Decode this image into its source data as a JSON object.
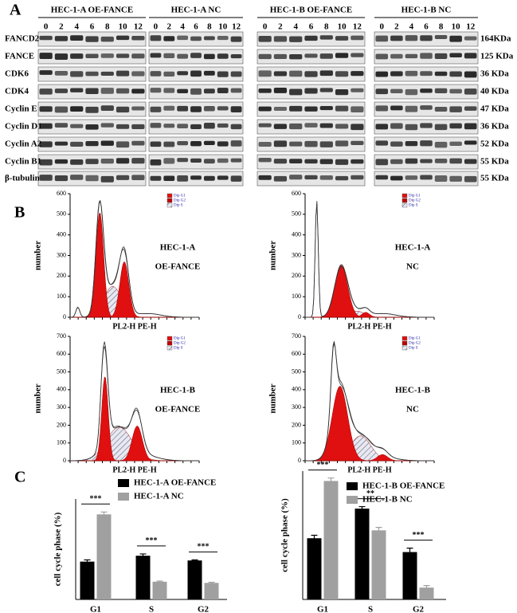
{
  "panel_labels": [
    "A",
    "B",
    "C"
  ],
  "blot": {
    "groups": [
      "HEC-1-A OE-FANCE",
      "HEC-1-A NC",
      "HEC-1-B OE-FANCE",
      "HEC-1-B NC"
    ],
    "timepoints": [
      0,
      2,
      4,
      6,
      8,
      10,
      12
    ],
    "rows": [
      {
        "protein": "FANCD2",
        "size": "164KDa"
      },
      {
        "protein": "FANCE",
        "size": "125 KDa"
      },
      {
        "protein": "CDK6",
        "size": "36 KDa"
      },
      {
        "protein": "CDK4",
        "size": "40 KDa"
      },
      {
        "protein": "Cyclin E",
        "size": "47 KDa"
      },
      {
        "protein": "Cyclin D1",
        "size": "36 KDa"
      },
      {
        "protein": "Cyclin A2",
        "size": "52 KDa"
      },
      {
        "protein": "Cyclin B1",
        "size": "55 KDa"
      },
      {
        "protein": "β-tubulin",
        "size": "55 KDa"
      }
    ]
  },
  "flow": {
    "ylabel": "number",
    "xlabel": "PL2-H PE-H",
    "legend": [
      "Dip G1",
      "Dip G2",
      "Dip S"
    ],
    "plots": [
      {
        "line1": "HEC-1-A",
        "line2": "OE-FANCE",
        "yticks": [
          0,
          100,
          200,
          300,
          400,
          500,
          600
        ]
      },
      {
        "line1": "HEC-1-A",
        "line2": "NC",
        "yticks": [
          0,
          100,
          200,
          300,
          400,
          500,
          600
        ]
      },
      {
        "line1": "HEC-1-B",
        "line2": "OE-FANCE",
        "yticks": [
          0,
          100,
          200,
          300,
          400,
          500,
          600,
          700
        ]
      },
      {
        "line1": "HEC-1-B",
        "line2": "NC",
        "yticks": [
          0,
          100,
          200,
          300,
          400,
          500,
          600,
          700
        ]
      }
    ]
  },
  "chart_data": [
    {
      "type": "bar",
      "ylabel": "cell cycle phase (%)",
      "categories": [
        "G1",
        "S",
        "G2"
      ],
      "ylim": [
        0,
        85
      ],
      "series": [
        {
          "name": "HEC-1-A OE-FANCE",
          "color": "#000000",
          "values": [
            32,
            37,
            33
          ],
          "errors": [
            1.5,
            1.5,
            0.5
          ]
        },
        {
          "name": "HEC-1-A NC",
          "color": "#a0a0a0",
          "values": [
            72,
            15,
            14
          ],
          "errors": [
            2,
            0.5,
            0.5
          ]
        }
      ],
      "annotations": [
        "***",
        "***",
        "***"
      ]
    },
    {
      "type": "bar",
      "ylabel": "cell cycle phase (%)",
      "categories": [
        "G1",
        "S",
        "G2"
      ],
      "ylim": [
        0,
        65
      ],
      "series": [
        {
          "name": "HEC-1-B OE-FANCE",
          "color": "#000000",
          "values": [
            31,
            46,
            24
          ],
          "errors": [
            1.5,
            1,
            2
          ]
        },
        {
          "name": "HEC-1-B NC",
          "color": "#a0a0a0",
          "values": [
            60,
            35,
            6
          ],
          "errors": [
            1.5,
            1.5,
            1
          ]
        }
      ],
      "annotations": [
        "***",
        "**",
        "***"
      ]
    }
  ]
}
